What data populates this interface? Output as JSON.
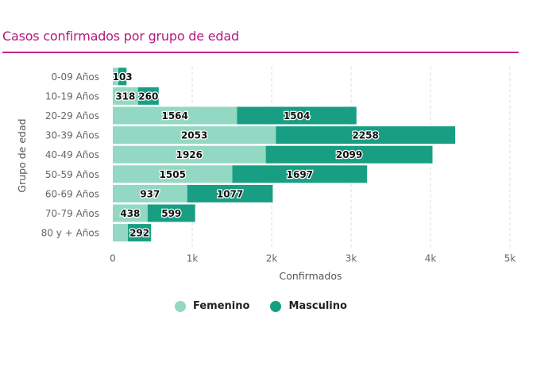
{
  "header": {
    "title": "Casos confirmados por grupo de edad"
  },
  "colors": {
    "title": "#b5197d",
    "femenino": "#93d8c3",
    "masculino": "#189f83",
    "grid": "#dddddd"
  },
  "legend": [
    {
      "label": "Femenino",
      "color": "#93d8c3"
    },
    {
      "label": "Masculino",
      "color": "#189f83"
    }
  ],
  "chart_data": {
    "type": "bar",
    "orientation": "horizontal",
    "stacked": true,
    "title": "Casos confirmados por grupo de edad",
    "xlabel": "Confirmados",
    "ylabel": "Grupo de edad",
    "xlim": [
      0,
      5000
    ],
    "x_ticks": [
      "0",
      "1k",
      "2k",
      "3k",
      "4k",
      "5k"
    ],
    "x_tick_values": [
      0,
      1000,
      2000,
      3000,
      4000,
      5000
    ],
    "grid": "vertical dashed",
    "legend_position": "bottom-center",
    "categories": [
      "0-09 Años",
      "10-19 Años",
      "20-29 Años",
      "30-39 Años",
      "40-49 Años",
      "50-59 Años",
      "60-69 Años",
      "70-79 Años",
      "80 y + Años"
    ],
    "series": [
      {
        "name": "Femenino",
        "values": [
          70,
          318,
          1564,
          2053,
          1926,
          1505,
          937,
          438,
          190
        ],
        "labels": [
          "",
          "318",
          "1564",
          "2053",
          "1926",
          "1505",
          "937",
          "438",
          ""
        ]
      },
      {
        "name": "Masculino",
        "values": [
          103,
          260,
          1504,
          2258,
          2099,
          1697,
          1077,
          599,
          292
        ],
        "labels": [
          "103",
          "260",
          "1504",
          "2258",
          "2099",
          "1697",
          "1077",
          "599",
          "292"
        ]
      }
    ]
  }
}
